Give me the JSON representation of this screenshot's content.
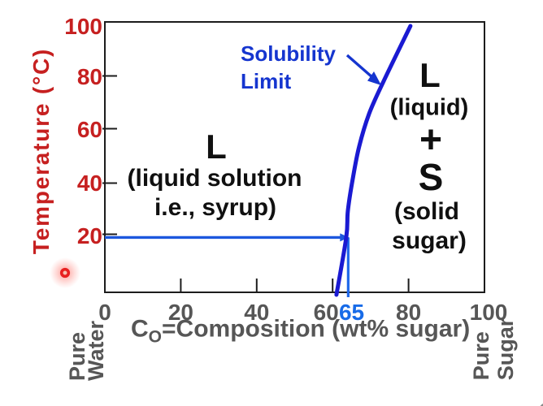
{
  "chart_data": {
    "type": "line",
    "title": "",
    "x_axis": {
      "label_main": "C",
      "label_sub": "O",
      "label_rest": "=Composition (wt% sugar)",
      "range": [
        0,
        100
      ],
      "ticks": [
        0,
        20,
        40,
        60,
        80,
        100
      ],
      "highlight_tick": {
        "value": 65,
        "color": "#176be8"
      },
      "left_end_label": "Pure\nWater",
      "right_end_label": "Pure\nSugar"
    },
    "y_axis": {
      "label": "Temperature (°C)",
      "range": [
        0,
        100
      ],
      "ticks": [
        20,
        40,
        60,
        80,
        100
      ]
    },
    "series": [
      {
        "name": "Solubility Limit",
        "color": "#1a1ad2",
        "points": [
          [
            61.0,
            -0.9
          ],
          [
            63.6,
            20.4
          ],
          [
            64.0,
            30
          ],
          [
            65.3,
            42
          ],
          [
            67.0,
            54
          ],
          [
            69.6,
            66
          ],
          [
            73.4,
            78
          ],
          [
            80.5,
            98.5
          ]
        ]
      }
    ],
    "construction_lines": {
      "horizontal": {
        "temperature": 20.3,
        "x_from": 0,
        "x_to": 64.3,
        "color": "#1c57de",
        "arrow": "right"
      },
      "vertical": {
        "composition": 64.1,
        "t_from": 20.3,
        "t_to": -1.8,
        "color": "#2068ea"
      }
    },
    "regions": {
      "left": {
        "lines": [
          "L",
          "(liquid solution",
          "i.e., syrup)"
        ]
      },
      "right": {
        "lines": [
          "L",
          "(liquid)",
          "+",
          "S",
          "(solid",
          "sugar)"
        ]
      }
    },
    "annotation": {
      "line1": "Solubility",
      "line2": "Limit",
      "color": "#1535cf"
    },
    "pointer": {
      "type": "laser-dot",
      "x": 80,
      "y": 336,
      "color": "#e82020"
    },
    "colors": {
      "axis": "#1c1c1c",
      "y_text": "#c62020",
      "x_text": "#565656",
      "region_text": "#101010"
    }
  }
}
